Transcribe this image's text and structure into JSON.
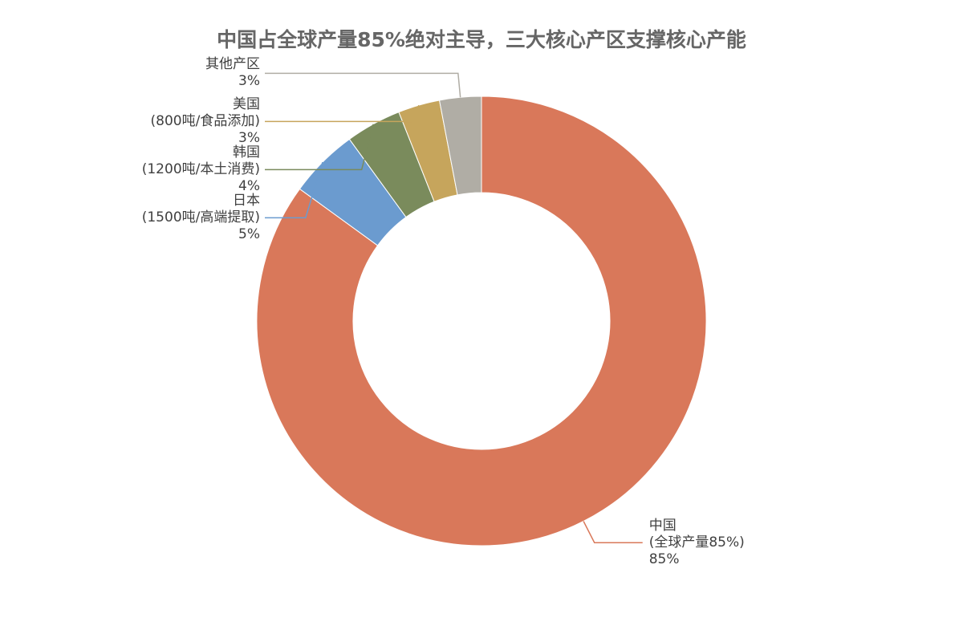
{
  "chart_data": {
    "type": "donut",
    "title": "中国占全球产量85%绝对主导，三大核心产区支撑核心产能",
    "categories": [
      "中国\n(全球产量85%)",
      "日本\n(1500吨/高端提取)",
      "韩国\n(1200吨/本土消费)",
      "美国\n(800吨/食品添加)",
      "其他产区"
    ],
    "values": [
      85,
      5,
      4,
      3,
      3
    ],
    "value_labels": [
      "85%",
      "5%",
      "4%",
      "3%",
      "3%"
    ],
    "colors": [
      "#d9785a",
      "#6b9bcf",
      "#7a8b5c",
      "#c6a55c",
      "#b0ada5"
    ]
  }
}
